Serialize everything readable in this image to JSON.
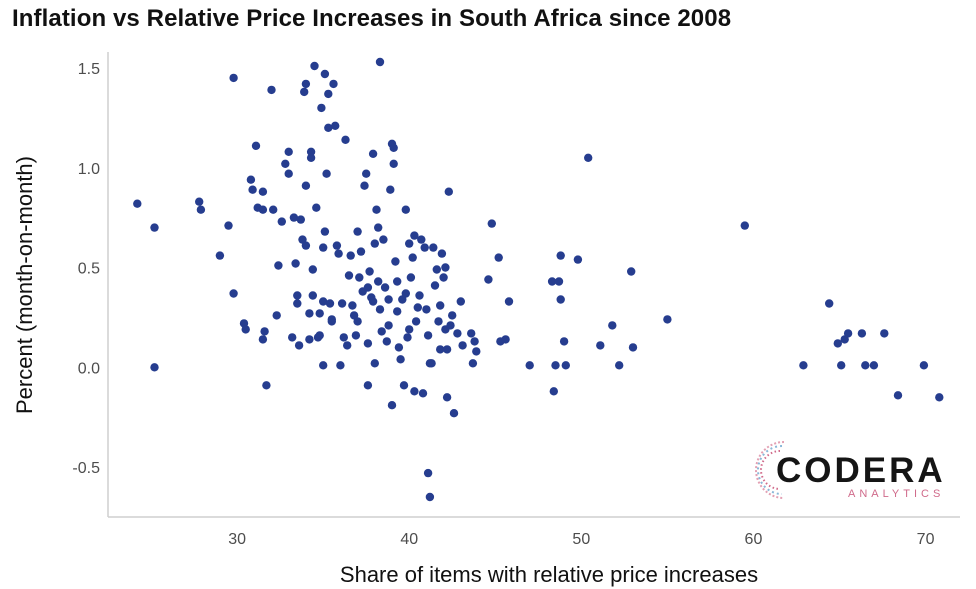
{
  "chart_data": {
    "type": "scatter",
    "title": "Inflation vs Relative Price Increases in South Africa since 2008",
    "xlabel": "Share of items with relative price increases",
    "ylabel": "Percent (month-on-month)",
    "xlim": [
      22.5,
      72
    ],
    "ylim": [
      -0.75,
      1.58
    ],
    "xticks": [
      30,
      40,
      50,
      60,
      70
    ],
    "yticks": [
      -0.5,
      0.0,
      0.5,
      1.0,
      1.5
    ],
    "xtick_labels": [
      "30",
      "40",
      "50",
      "60",
      "70"
    ],
    "ytick_labels": [
      "-0.5",
      "0.0",
      "0.5",
      "1.0",
      "1.5"
    ],
    "grid": false,
    "legend": "none",
    "point_color": "#263d8f",
    "points": [
      [
        24.2,
        0.82
      ],
      [
        25.2,
        0.7
      ],
      [
        25.2,
        0.0
      ],
      [
        27.8,
        0.83
      ],
      [
        27.9,
        0.79
      ],
      [
        29.0,
        0.56
      ],
      [
        29.5,
        0.71
      ],
      [
        29.8,
        1.45
      ],
      [
        29.8,
        0.37
      ],
      [
        30.4,
        0.22
      ],
      [
        30.5,
        0.19
      ],
      [
        30.8,
        0.94
      ],
      [
        30.9,
        0.89
      ],
      [
        31.1,
        1.11
      ],
      [
        31.2,
        0.8
      ],
      [
        31.5,
        0.88
      ],
      [
        31.5,
        0.79
      ],
      [
        31.5,
        0.14
      ],
      [
        31.6,
        0.18
      ],
      [
        31.7,
        -0.09
      ],
      [
        32.0,
        1.39
      ],
      [
        32.1,
        0.79
      ],
      [
        32.3,
        0.26
      ],
      [
        32.4,
        0.51
      ],
      [
        32.6,
        0.73
      ],
      [
        32.8,
        1.02
      ],
      [
        33.0,
        1.08
      ],
      [
        33.0,
        0.97
      ],
      [
        33.2,
        0.15
      ],
      [
        33.3,
        0.75
      ],
      [
        33.4,
        0.52
      ],
      [
        33.5,
        0.32
      ],
      [
        33.5,
        0.36
      ],
      [
        33.6,
        0.11
      ],
      [
        33.7,
        0.74
      ],
      [
        33.8,
        0.64
      ],
      [
        33.9,
        1.38
      ],
      [
        34.0,
        1.42
      ],
      [
        34.0,
        0.91
      ],
      [
        34.0,
        0.61
      ],
      [
        34.2,
        0.27
      ],
      [
        34.2,
        0.14
      ],
      [
        34.3,
        1.08
      ],
      [
        34.3,
        1.05
      ],
      [
        34.4,
        0.49
      ],
      [
        34.4,
        0.36
      ],
      [
        34.5,
        1.51
      ],
      [
        34.6,
        0.8
      ],
      [
        34.7,
        0.15
      ],
      [
        34.8,
        0.27
      ],
      [
        34.8,
        0.16
      ],
      [
        34.9,
        1.3
      ],
      [
        35.0,
        0.6
      ],
      [
        35.0,
        0.33
      ],
      [
        35.0,
        0.01
      ],
      [
        35.1,
        1.47
      ],
      [
        35.1,
        0.68
      ],
      [
        35.2,
        0.97
      ],
      [
        35.3,
        1.37
      ],
      [
        35.3,
        1.2
      ],
      [
        35.4,
        0.32
      ],
      [
        35.5,
        0.23
      ],
      [
        35.5,
        0.24
      ],
      [
        35.6,
        1.42
      ],
      [
        35.7,
        1.21
      ],
      [
        35.8,
        0.61
      ],
      [
        35.9,
        0.57
      ],
      [
        36.0,
        0.01
      ],
      [
        36.1,
        0.32
      ],
      [
        36.2,
        0.15
      ],
      [
        36.3,
        1.14
      ],
      [
        36.4,
        0.11
      ],
      [
        36.5,
        0.46
      ],
      [
        36.6,
        0.56
      ],
      [
        36.7,
        0.31
      ],
      [
        36.8,
        0.26
      ],
      [
        36.9,
        0.16
      ],
      [
        37.0,
        0.68
      ],
      [
        37.0,
        0.23
      ],
      [
        37.1,
        0.45
      ],
      [
        37.2,
        0.58
      ],
      [
        37.3,
        0.38
      ],
      [
        37.4,
        0.91
      ],
      [
        37.5,
        0.97
      ],
      [
        37.6,
        0.4
      ],
      [
        37.6,
        0.12
      ],
      [
        37.6,
        -0.09
      ],
      [
        37.7,
        0.48
      ],
      [
        37.8,
        0.35
      ],
      [
        37.9,
        1.07
      ],
      [
        37.9,
        0.33
      ],
      [
        38.0,
        0.02
      ],
      [
        38.0,
        0.62
      ],
      [
        38.1,
        0.79
      ],
      [
        38.2,
        0.7
      ],
      [
        38.2,
        0.43
      ],
      [
        38.3,
        0.29
      ],
      [
        38.3,
        1.53
      ],
      [
        38.4,
        0.18
      ],
      [
        38.5,
        0.64
      ],
      [
        38.6,
        0.4
      ],
      [
        38.7,
        0.13
      ],
      [
        38.8,
        0.34
      ],
      [
        38.8,
        0.21
      ],
      [
        38.9,
        0.89
      ],
      [
        39.0,
        1.12
      ],
      [
        39.0,
        -0.19
      ],
      [
        39.1,
        1.1
      ],
      [
        39.1,
        1.02
      ],
      [
        39.2,
        0.53
      ],
      [
        39.3,
        0.43
      ],
      [
        39.3,
        0.28
      ],
      [
        39.4,
        0.1
      ],
      [
        39.5,
        0.04
      ],
      [
        39.6,
        0.34
      ],
      [
        39.7,
        -0.09
      ],
      [
        39.8,
        0.37
      ],
      [
        39.8,
        0.79
      ],
      [
        39.9,
        0.15
      ],
      [
        40.0,
        0.19
      ],
      [
        40.0,
        0.62
      ],
      [
        40.1,
        0.45
      ],
      [
        40.2,
        0.55
      ],
      [
        40.3,
        0.66
      ],
      [
        40.3,
        -0.12
      ],
      [
        40.4,
        0.23
      ],
      [
        40.5,
        0.3
      ],
      [
        40.6,
        0.36
      ],
      [
        40.7,
        0.64
      ],
      [
        40.8,
        -0.13
      ],
      [
        40.9,
        0.6
      ],
      [
        41.0,
        0.29
      ],
      [
        41.1,
        0.16
      ],
      [
        41.1,
        -0.53
      ],
      [
        41.2,
        0.02
      ],
      [
        41.2,
        -0.65
      ],
      [
        41.3,
        0.02
      ],
      [
        41.4,
        0.6
      ],
      [
        41.5,
        0.41
      ],
      [
        41.6,
        0.49
      ],
      [
        41.7,
        0.23
      ],
      [
        41.8,
        0.31
      ],
      [
        41.8,
        0.09
      ],
      [
        41.9,
        0.57
      ],
      [
        42.0,
        0.45
      ],
      [
        42.1,
        0.5
      ],
      [
        42.1,
        0.19
      ],
      [
        42.2,
        0.09
      ],
      [
        42.2,
        -0.15
      ],
      [
        42.3,
        0.88
      ],
      [
        42.4,
        0.21
      ],
      [
        42.5,
        0.26
      ],
      [
        42.6,
        -0.23
      ],
      [
        42.8,
        0.17
      ],
      [
        43.0,
        0.33
      ],
      [
        43.1,
        0.11
      ],
      [
        43.6,
        0.17
      ],
      [
        43.7,
        0.02
      ],
      [
        43.8,
        0.13
      ],
      [
        43.9,
        0.08
      ],
      [
        44.6,
        0.44
      ],
      [
        44.8,
        0.72
      ],
      [
        45.2,
        0.55
      ],
      [
        45.3,
        0.13
      ],
      [
        45.6,
        0.14
      ],
      [
        45.8,
        0.33
      ],
      [
        47.0,
        0.01
      ],
      [
        48.3,
        0.43
      ],
      [
        48.4,
        -0.12
      ],
      [
        48.5,
        0.01
      ],
      [
        48.7,
        0.43
      ],
      [
        48.8,
        0.56
      ],
      [
        48.8,
        0.34
      ],
      [
        49.0,
        0.13
      ],
      [
        49.1,
        0.01
      ],
      [
        49.8,
        0.54
      ],
      [
        50.4,
        1.05
      ],
      [
        51.1,
        0.11
      ],
      [
        51.8,
        0.21
      ],
      [
        52.2,
        0.01
      ],
      [
        52.9,
        0.48
      ],
      [
        53.0,
        0.1
      ],
      [
        55.0,
        0.24
      ],
      [
        59.5,
        0.71
      ],
      [
        62.9,
        0.01
      ],
      [
        64.4,
        0.32
      ],
      [
        64.9,
        0.12
      ],
      [
        65.1,
        0.01
      ],
      [
        65.3,
        0.14
      ],
      [
        65.5,
        0.17
      ],
      [
        66.3,
        0.17
      ],
      [
        66.5,
        0.01
      ],
      [
        67.0,
        0.01
      ],
      [
        67.6,
        0.17
      ],
      [
        68.4,
        -0.14
      ],
      [
        69.9,
        0.01
      ],
      [
        70.8,
        -0.15
      ]
    ]
  },
  "logo": {
    "name": "CODERA",
    "sub": "ANALYTICS",
    "color_dark": "#151515",
    "color_accent": "#d06a8a"
  }
}
